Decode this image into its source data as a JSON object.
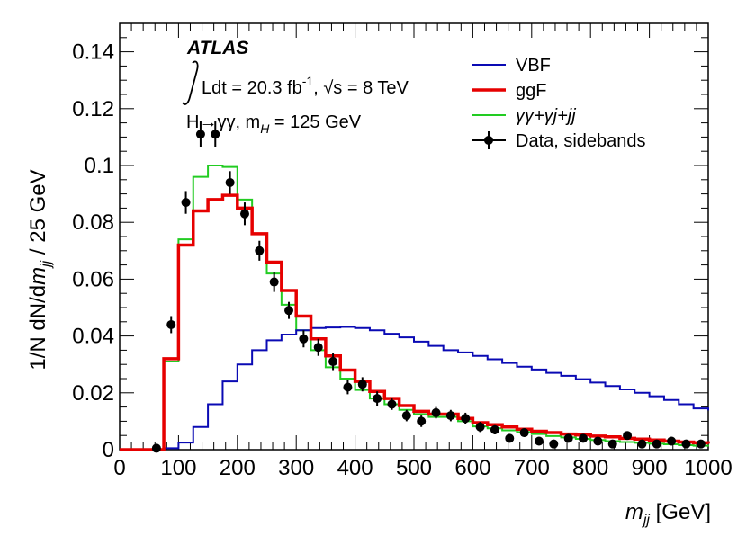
{
  "chart_data": {
    "type": "line",
    "title": "",
    "xlabel": "m_jj [GeV]",
    "ylabel": "1/N dN/dm_jj / 25 GeV",
    "xlim": [
      0,
      1000
    ],
    "ylim": [
      0,
      0.15
    ],
    "grid": false,
    "bin_width": 25,
    "x_ticks": [
      0,
      100,
      200,
      300,
      400,
      500,
      600,
      700,
      800,
      900,
      1000
    ],
    "x_tick_labels": [
      "0",
      "100",
      "200",
      "300",
      "400",
      "500",
      "600",
      "700",
      "800",
      "900",
      "1000"
    ],
    "y_ticks": [
      0,
      0.02,
      0.04,
      0.06,
      0.08,
      0.1,
      0.12,
      0.14
    ],
    "y_tick_labels": [
      "0",
      "0.02",
      "0.04",
      "0.06",
      "0.08",
      "0.1",
      "0.12",
      "0.14"
    ],
    "bin_edges": [
      0,
      25,
      50,
      75,
      100,
      125,
      150,
      175,
      200,
      225,
      250,
      275,
      300,
      325,
      350,
      375,
      400,
      425,
      450,
      475,
      500,
      525,
      550,
      575,
      600,
      625,
      650,
      675,
      700,
      725,
      750,
      775,
      800,
      825,
      850,
      875,
      900,
      925,
      950,
      975,
      1000
    ],
    "series": [
      {
        "name": "VBF",
        "style": "step",
        "color": "#0a0ab4",
        "values": [
          0,
          0,
          0,
          0.0005,
          0.0025,
          0.008,
          0.016,
          0.024,
          0.03,
          0.035,
          0.0385,
          0.0405,
          0.042,
          0.0428,
          0.043,
          0.0432,
          0.0428,
          0.042,
          0.0408,
          0.0395,
          0.038,
          0.0365,
          0.035,
          0.0342,
          0.033,
          0.0318,
          0.0305,
          0.0292,
          0.0282,
          0.027,
          0.026,
          0.0248,
          0.0236,
          0.0224,
          0.0212,
          0.02,
          0.0188,
          0.0175,
          0.016,
          0.0145,
          0.0138
        ]
      },
      {
        "name": "ggF",
        "style": "step",
        "color": "#e60000",
        "values": [
          0,
          0,
          0,
          0.032,
          0.072,
          0.084,
          0.088,
          0.0895,
          0.085,
          0.076,
          0.066,
          0.056,
          0.047,
          0.039,
          0.033,
          0.028,
          0.024,
          0.0205,
          0.018,
          0.0155,
          0.0135,
          0.0125,
          0.0125,
          0.011,
          0.0095,
          0.0088,
          0.008,
          0.0072,
          0.0065,
          0.006,
          0.0055,
          0.0052,
          0.0048,
          0.0045,
          0.004,
          0.0037,
          0.0034,
          0.003,
          0.0027,
          0.0024,
          0.0021
        ]
      },
      {
        "name": "γγ+γj+jj",
        "style": "step",
        "color": "#22cc22",
        "values": [
          0,
          0,
          0,
          0.031,
          0.074,
          0.096,
          0.1,
          0.0995,
          0.088,
          0.076,
          0.062,
          0.051,
          0.042,
          0.035,
          0.029,
          0.025,
          0.021,
          0.018,
          0.016,
          0.014,
          0.0125,
          0.0115,
          0.0115,
          0.01,
          0.0082,
          0.0075,
          0.0068,
          0.0062,
          0.0055,
          0.0048,
          0.0043,
          0.0038,
          0.0034,
          0.003,
          0.0027,
          0.0024,
          0.0021,
          0.0019,
          0.0016,
          0.0014,
          0.0011
        ]
      },
      {
        "name": "Data, sidebands",
        "style": "points",
        "color": "#000000",
        "x": [
          62.5,
          87.5,
          112.5,
          137.5,
          162.5,
          187.5,
          212.5,
          237.5,
          262.5,
          287.5,
          312.5,
          337.5,
          362.5,
          387.5,
          412.5,
          437.5,
          462.5,
          487.5,
          512.5,
          537.5,
          562.5,
          587.5,
          612.5,
          637.5,
          662.5,
          687.5,
          712.5,
          737.5,
          762.5,
          787.5,
          812.5,
          837.5,
          862.5,
          887.5,
          912.5,
          937.5,
          962.5,
          987.5
        ],
        "values": [
          0.0005,
          0.044,
          0.087,
          0.111,
          0.111,
          0.094,
          0.083,
          0.07,
          0.059,
          0.049,
          0.039,
          0.036,
          0.031,
          0.022,
          0.023,
          0.018,
          0.016,
          0.012,
          0.01,
          0.013,
          0.012,
          0.011,
          0.008,
          0.007,
          0.004,
          0.006,
          0.003,
          0.002,
          0.004,
          0.004,
          0.003,
          0.002,
          0.005,
          0.002,
          0.002,
          0.003,
          0.002,
          0.002
        ],
        "errors": [
          0.0005,
          0.003,
          0.004,
          0.0045,
          0.0045,
          0.004,
          0.004,
          0.0035,
          0.0035,
          0.003,
          0.003,
          0.003,
          0.003,
          0.0025,
          0.0025,
          0.0025,
          0.002,
          0.002,
          0.002,
          0.002,
          0.002,
          0.002,
          0.0018,
          0.0016,
          0.0015,
          0.0015,
          0.0013,
          0.0012,
          0.0012,
          0.0012,
          0.0011,
          0.001,
          0.001,
          0.001,
          0.001,
          0.001,
          0.001,
          0.001
        ]
      }
    ],
    "annotations": {
      "experiment": "ATLAS",
      "lumi_prefix": "Ldt = 20.3 fb",
      "lumi_exponent": "-1",
      "energy_text": ", √s = 8 TeV",
      "process": "H→γγ, m",
      "process_subscript": "H",
      "process_suffix": " = 125 GeV"
    },
    "legend_position": "top-right"
  }
}
